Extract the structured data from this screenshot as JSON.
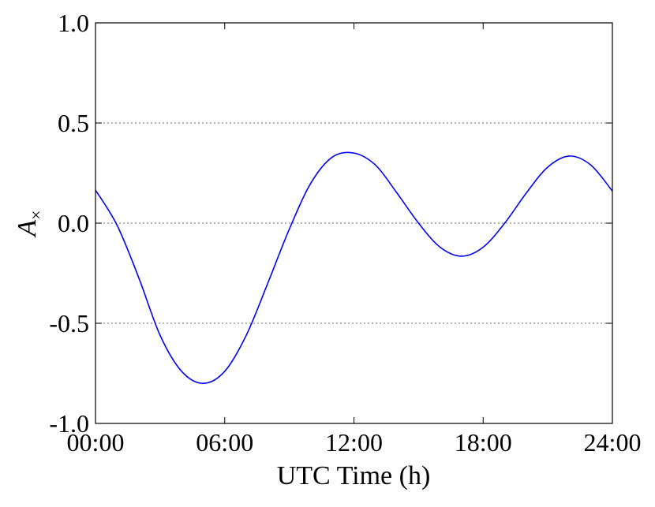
{
  "chart_data": {
    "type": "line",
    "title": "",
    "xlabel": "UTC Time (h)",
    "ylabel_main": "A",
    "ylabel_sub": "×",
    "xlim": [
      0,
      24
    ],
    "ylim": [
      -1.0,
      1.0
    ],
    "xticks": [
      0,
      6,
      12,
      18,
      24
    ],
    "xtick_labels": [
      "00:00",
      "06:00",
      "12:00",
      "18:00",
      "24:00"
    ],
    "yticks": [
      1.0,
      0.5,
      0.0,
      -0.5,
      -1.0
    ],
    "ytick_labels": [
      "1.0",
      "0.5",
      "0.0",
      "-0.5",
      "-1.0"
    ],
    "grid": "horizontal dotted at y ticks",
    "series": [
      {
        "name": "A×",
        "color": "#0000ff",
        "x": [
          0,
          1,
          2,
          3,
          4,
          5,
          6,
          7,
          8,
          9,
          10,
          11,
          12,
          13,
          14,
          15,
          16,
          17,
          18,
          19,
          20,
          21,
          22,
          23,
          24
        ],
        "y": [
          0.165,
          -0.01,
          -0.27,
          -0.56,
          -0.74,
          -0.8,
          -0.74,
          -0.56,
          -0.3,
          -0.03,
          0.2,
          0.33,
          0.35,
          0.29,
          0.15,
          0.0,
          -0.12,
          -0.165,
          -0.12,
          0.0,
          0.15,
          0.28,
          0.335,
          0.29,
          0.16
        ]
      }
    ]
  }
}
